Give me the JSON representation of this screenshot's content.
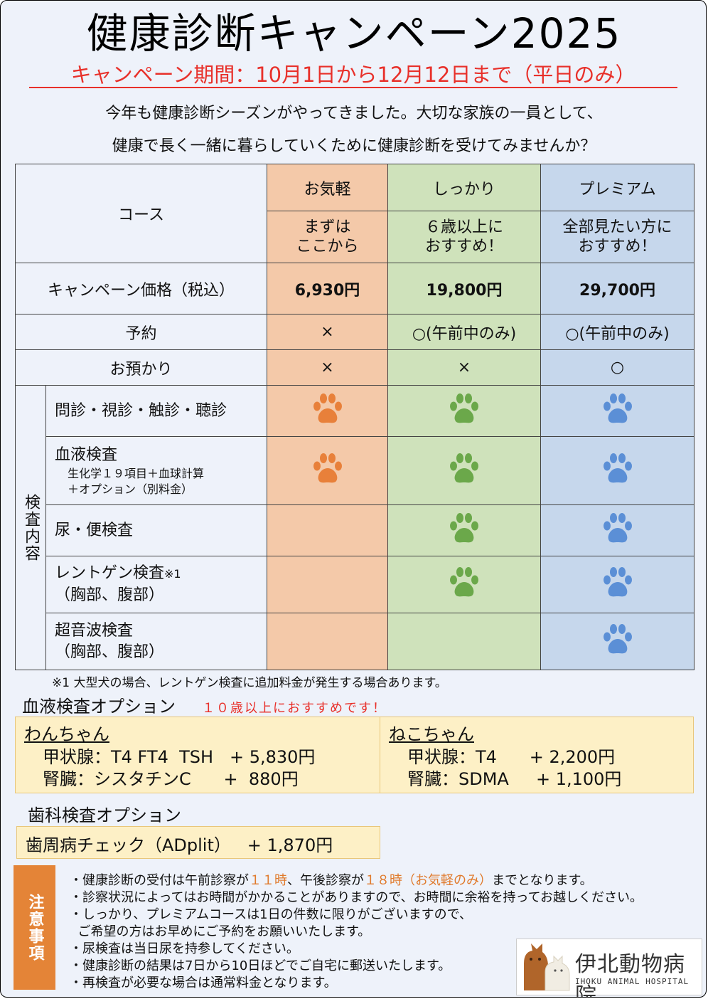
{
  "title": "健康診断キャンペーン2025",
  "period": "キャンペーン期間：10月1日から12月12日まで（平日のみ）",
  "intro": [
    "今年も健康診断シーズンがやってきました。大切な家族の一員として、",
    "健康で長く一緒に暮らしていくために健康診断を受けてみませんか？"
  ],
  "table": {
    "course_label": "コース",
    "courses": [
      {
        "name": "お気軽",
        "rec1": "まずは",
        "rec2": "ここから",
        "price": "6,930円",
        "reserve": "×",
        "boarding": "×"
      },
      {
        "name": "しっかり",
        "rec1": "６歳以上に",
        "rec2": "おすすめ！",
        "price": "19,800円",
        "reserve": "○(午前中のみ)",
        "boarding": "×"
      },
      {
        "name": "プレミアム",
        "rec1": "全部見たい方に",
        "rec2": "おすすめ！",
        "price": "29,700円",
        "reserve": "○(午前中のみ)",
        "boarding": "○"
      }
    ],
    "price_label": "キャンペーン価格（税込）",
    "reserve_label": "予約",
    "boarding_label": "お預かり",
    "inspection_label": "検査内容",
    "inspections": [
      {
        "name": "問診・視診・触診・聴診",
        "sub1": "",
        "sub2": "",
        "included": [
          true,
          true,
          true
        ]
      },
      {
        "name": "血液検査",
        "sub1": "生化学１９項目＋血球計算",
        "sub2": "＋オプション（別料金）",
        "included": [
          true,
          true,
          true
        ]
      },
      {
        "name": "尿・便検査",
        "sub1": "",
        "sub2": "",
        "included": [
          false,
          true,
          true
        ]
      },
      {
        "name": "レントゲン検査",
        "mark": "※1",
        "sub1": "（胸部、腹部）",
        "included": [
          false,
          true,
          true
        ]
      },
      {
        "name": "超音波検査",
        "sub1": "（胸部、腹部）",
        "included": [
          false,
          false,
          true
        ]
      }
    ]
  },
  "footnote": "※1 大型犬の場合、レントゲン検査に追加料金が発生する場合あります。",
  "blood_option": {
    "title": "血液検査オプション",
    "recommend": "１０歳以上におすすめです！",
    "dog": {
      "head": "わんちゃん",
      "line1": "甲状腺：T4 FT4  TSH   + 5,830円",
      "line2": "腎臓：シスタチンC      +  880円"
    },
    "cat": {
      "head": "ねこちゃん",
      "line1": "甲状腺：T4      + 2,200円",
      "line2": "腎臓：SDMA     + 1,100円"
    }
  },
  "dental_option": {
    "title": "歯科検査オプション",
    "item": "歯周病チェック（ADplit）   + 1,870円"
  },
  "notice": {
    "tab": "注意事項",
    "line1a": "・健康診断の受付は午前診察が",
    "line1b": "１１時",
    "line1c": "、午後診察が",
    "line1d": "１８時（お気軽のみ）",
    "line1e": "までとなります。",
    "lines": [
      "・診察状況によってはお時間がかかることがありますので、お時間に余裕を持ってお越しください。",
      "・しっかり、プレミアムコースは1日の件数に限りがございますので、",
      "  ご希望の方はお早めにご予約をお願いいたします。",
      "・尿検査は当日尿を持参してください。",
      "・健康診断の結果は7日から10日ほどでご自宅に郵送いたします。",
      "・再検査が必要な場合は通常料金となります。"
    ]
  },
  "logo": {
    "name": "伊北動物病院",
    "en": "IHOKU ANIMAL HOSPITAL"
  },
  "colors": {
    "okigaru": "#f4c9a9",
    "shikkari": "#cfe2bb",
    "premium": "#c6d7ec",
    "paw_orange": "#e8803a",
    "paw_green": "#6ba84a",
    "paw_blue": "#5b8fd6",
    "accent_red": "#e8302a"
  }
}
